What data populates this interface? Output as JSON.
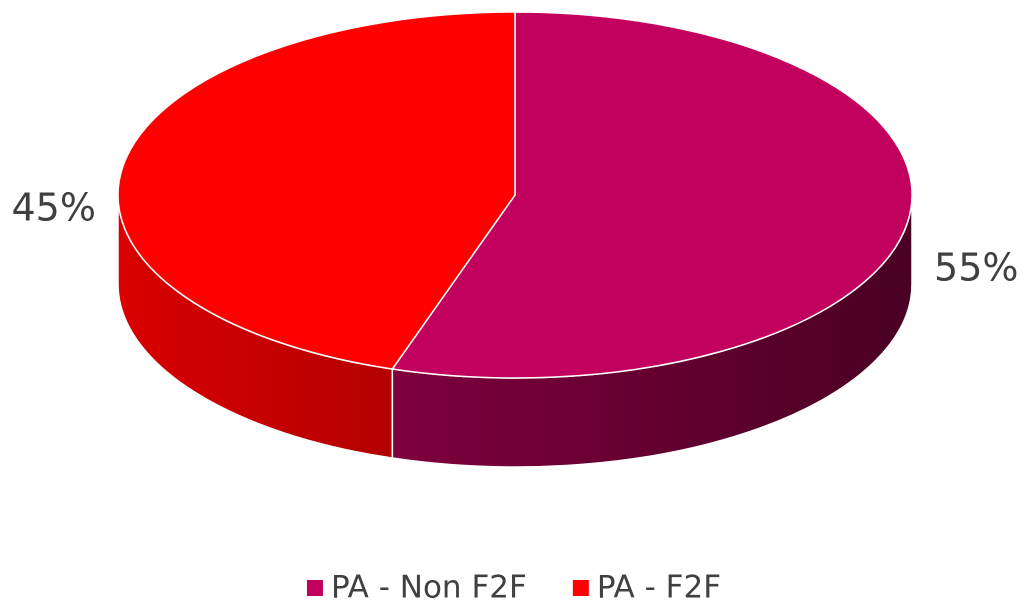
{
  "chart_data": {
    "type": "pie",
    "categories": [
      "PA - Non F2F",
      "PA - F2F"
    ],
    "values": [
      55,
      45
    ],
    "value_labels": [
      "55%",
      "45%"
    ],
    "colors": [
      "#c2005e",
      "#ff0000"
    ],
    "legend": "bottom"
  }
}
